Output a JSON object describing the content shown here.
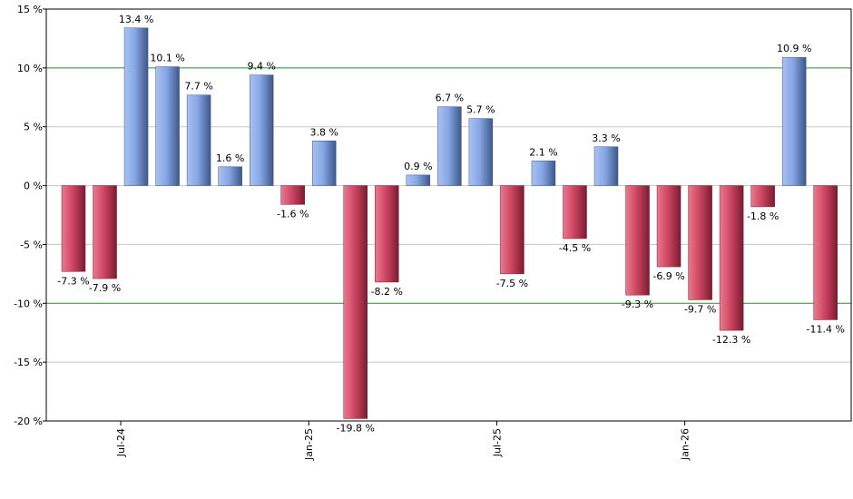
{
  "chart_data": {
    "type": "bar",
    "yaxis": {
      "min": -20,
      "max": 15,
      "ticks": [
        15,
        10,
        5,
        0,
        -5,
        -10,
        -15,
        -20
      ],
      "tick_labels": [
        "15 %",
        "10 %",
        "5 %",
        "0 %",
        "-5 %",
        "-10 %",
        "-15 %",
        "-20 %"
      ]
    },
    "grid": true,
    "reference_lines": [
      10,
      -10
    ],
    "values": [
      -7.3,
      -7.9,
      13.4,
      10.1,
      7.7,
      1.6,
      9.4,
      -1.6,
      3.8,
      -19.8,
      -8.2,
      0.9,
      6.7,
      5.7,
      -7.5,
      2.1,
      -4.5,
      3.3,
      -9.3,
      -6.9,
      -9.7,
      -12.3,
      -1.8,
      10.9,
      -11.4
    ],
    "value_labels": [
      "-7.3 %",
      "-7.9 %",
      "13.4 %",
      "10.1 %",
      "7.7 %",
      "1.6 %",
      "9.4 %",
      "-1.6 %",
      "3.8 %",
      "-19.8 %",
      "-8.2 %",
      "0.9 %",
      "6.7 %",
      "5.7 %",
      "-7.5 %",
      "2.1 %",
      "-4.5 %",
      "3.3 %",
      "-9.3 %",
      "-6.9 %",
      "-9.7 %",
      "-12.3 %",
      "-1.8 %",
      "10.9 %",
      "-11.4 %"
    ],
    "x_tick_labels": [
      {
        "label": "Jul-24",
        "bar_index": 2
      },
      {
        "label": "Jan-25",
        "bar_index": 8
      },
      {
        "label": "Jul-25",
        "bar_index": 14
      },
      {
        "label": "Jan-26",
        "bar_index": 20
      }
    ],
    "colors": {
      "positive": "#7f9fe0",
      "negative": "#c8405a",
      "grid": "#c8c8c8",
      "reference": "#2e8b2e"
    }
  }
}
